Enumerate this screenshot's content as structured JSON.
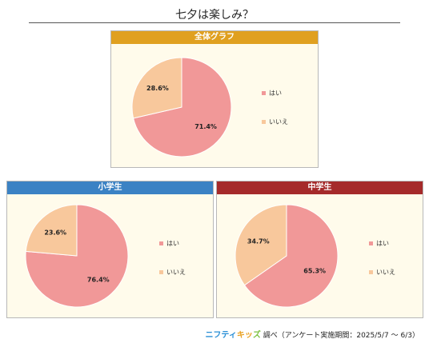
{
  "title": "七夕は楽しみ？",
  "colors": {
    "yes": "#f19898",
    "no": "#f8c89c",
    "header_all": "#e0a020",
    "header_elem": "#3b82c4",
    "header_middle": "#a52a2a"
  },
  "legend": {
    "yes": "はい",
    "no": "いいえ"
  },
  "chart_data": [
    {
      "type": "pie",
      "title": "全体グラフ",
      "labels": [
        "はい",
        "いいえ"
      ],
      "values": [
        71.4,
        28.6
      ],
      "value_labels": [
        "71.4%",
        "28.6%"
      ]
    },
    {
      "type": "pie",
      "title": "小学生",
      "labels": [
        "はい",
        "いいえ"
      ],
      "values": [
        76.4,
        23.6
      ],
      "value_labels": [
        "76.4%",
        "23.6%"
      ]
    },
    {
      "type": "pie",
      "title": "中学生",
      "labels": [
        "はい",
        "いいえ"
      ],
      "values": [
        65.3,
        34.7
      ],
      "value_labels": [
        "65.3%",
        "34.7%"
      ]
    }
  ],
  "footer": {
    "logo_part1": "ニフティ",
    "logo_part2": "キッ",
    "logo_part3": "ズ",
    "text": "調べ（アンケート実施期間：2025/5/7 ～ 6/3）"
  }
}
